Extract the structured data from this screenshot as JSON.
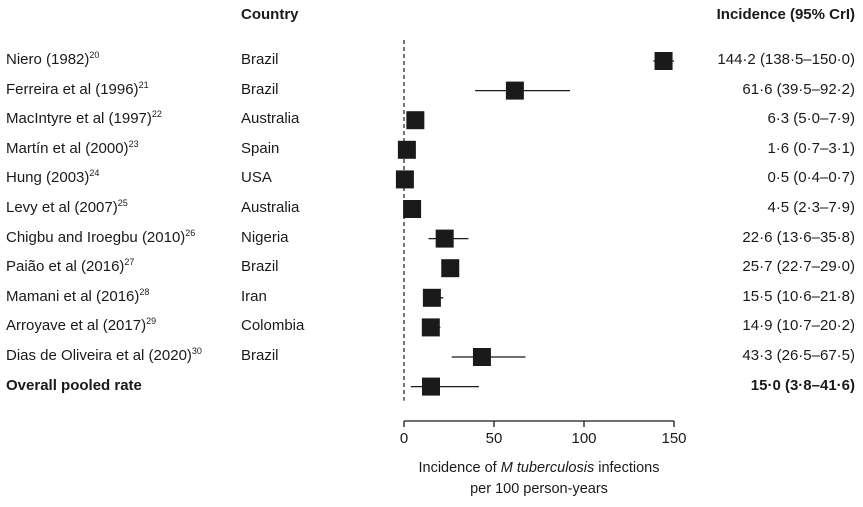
{
  "chart_data": {
    "type": "forest",
    "headers": {
      "country": "Country",
      "incidence": "Incidence (95% CrI)"
    },
    "rows": [
      {
        "study": "Niero (1982)",
        "ref": "20",
        "country": "Brazil",
        "estimate": 144.2,
        "lower": 138.5,
        "upper": 150.0,
        "label": "144·2 (138·5–150·0)",
        "pooled": false
      },
      {
        "study": "Ferreira et al (1996)",
        "ref": "21",
        "country": "Brazil",
        "estimate": 61.6,
        "lower": 39.5,
        "upper": 92.2,
        "label": "61·6 (39·5–92·2)",
        "pooled": false
      },
      {
        "study": "MacIntyre et al (1997)",
        "ref": "22",
        "country": "Australia",
        "estimate": 6.3,
        "lower": 5.0,
        "upper": 7.9,
        "label": "6·3 (5·0–7·9)",
        "pooled": false
      },
      {
        "study": "Martín et al (2000)",
        "ref": "23",
        "country": "Spain",
        "estimate": 1.6,
        "lower": 0.7,
        "upper": 3.1,
        "label": "1·6 (0·7–3·1)",
        "pooled": false
      },
      {
        "study": "Hung (2003)",
        "ref": "24",
        "country": "USA",
        "estimate": 0.5,
        "lower": 0.4,
        "upper": 0.7,
        "label": "0·5 (0·4–0·7)",
        "pooled": false
      },
      {
        "study": "Levy et al (2007)",
        "ref": "25",
        "country": "Australia",
        "estimate": 4.5,
        "lower": 2.3,
        "upper": 7.9,
        "label": "4·5 (2·3–7·9)",
        "pooled": false
      },
      {
        "study": "Chigbu and Iroegbu (2010)",
        "ref": "26",
        "country": "Nigeria",
        "estimate": 22.6,
        "lower": 13.6,
        "upper": 35.8,
        "label": "22·6 (13·6–35·8)",
        "pooled": false
      },
      {
        "study": "Paião et al (2016)",
        "ref": "27",
        "country": "Brazil",
        "estimate": 25.7,
        "lower": 22.7,
        "upper": 29.0,
        "label": "25·7 (22·7–29·0)",
        "pooled": false
      },
      {
        "study": "Mamani et al (2016)",
        "ref": "28",
        "country": "Iran",
        "estimate": 15.5,
        "lower": 10.6,
        "upper": 21.8,
        "label": "15·5 (10·6–21·8)",
        "pooled": false
      },
      {
        "study": "Arroyave et al (2017)",
        "ref": "29",
        "country": "Colombia",
        "estimate": 14.9,
        "lower": 10.7,
        "upper": 20.2,
        "label": "14·9 (10·7–20·2)",
        "pooled": false
      },
      {
        "study": "Dias de Oliveira et al (2020)",
        "ref": "30",
        "country": "Brazil",
        "estimate": 43.3,
        "lower": 26.5,
        "upper": 67.5,
        "label": "43·3 (26·5–67·5)",
        "pooled": false
      },
      {
        "study": "Overall pooled rate",
        "ref": "",
        "country": "",
        "estimate": 15.0,
        "lower": 3.8,
        "upper": 41.6,
        "label": "15·0 (3·8–41·6)",
        "pooled": true
      }
    ],
    "x_ticks": [
      0,
      50,
      100,
      150
    ],
    "xlim": [
      0,
      150
    ],
    "reference_line": 0,
    "xlabel_line1_pre": "Incidence of ",
    "xlabel_line1_italic": "M tuberculosis",
    "xlabel_line1_post": " infections",
    "xlabel_line2": "per 100 person-years"
  }
}
